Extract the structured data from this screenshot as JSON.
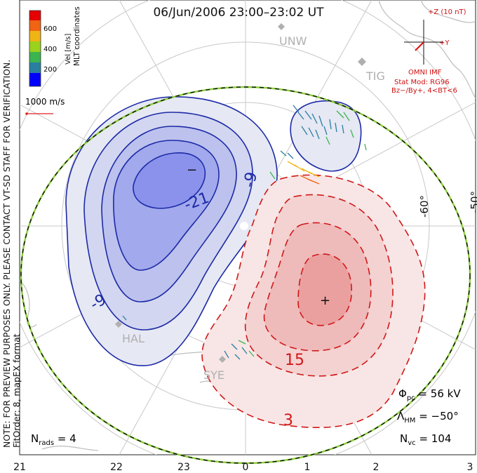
{
  "title": "06/Jun/2006 23:00–23:02 UT",
  "side_note": {
    "line1": "NOTE: FOR PREVIEW PURPOSES ONLY. PLEASE CONTACT VT-SD STAFF FOR VERIFICATION.",
    "line2": "FitOrder: 8, mapEX format"
  },
  "colorbar": {
    "label": "Vel [m/s]",
    "coord_label": "MLT coordinates",
    "ticks": [
      "600",
      "400",
      "200"
    ],
    "colors": [
      "#0000ff",
      "#2a7fa0",
      "#3cb450",
      "#9ad21e",
      "#f0b414",
      "#f06414",
      "#e60000"
    ]
  },
  "ref_vector": {
    "label": "1000 m/s",
    "color": "#e02020"
  },
  "imf": {
    "z_label": "+Z (10 nT)",
    "y_label": "+Y",
    "source": "OMNI IMF",
    "model_line1": "Stat Mod: RG96",
    "model_line2": "Bz−/By+, 4<BT<6",
    "color": "#e01010"
  },
  "stations": [
    "UNW",
    "TIG",
    "HAL",
    "SYE"
  ],
  "lat_labels": [
    "-60°",
    "-50°"
  ],
  "contour_labels": {
    "negative": [
      "-9",
      "-21",
      "-9"
    ],
    "positive": [
      "15",
      "3"
    ],
    "min_marker": "−",
    "max_marker": "+"
  },
  "stats": {
    "phi_pc": "Φ",
    "phi_sub": "pc",
    "phi_value": "= 56 kV",
    "lambda": "Λ",
    "lambda_sub": "HM",
    "lambda_value": "= −50°",
    "nvc": "N",
    "nvc_sub": "vc",
    "nvc_value": "= 104",
    "nrads": "N",
    "nrads_sub": "rads",
    "nrads_value": "= 4"
  },
  "mlt_ticks": [
    "21",
    "22",
    "23",
    "0",
    "1",
    "2",
    "3"
  ],
  "colors": {
    "neg_fill": [
      "#e6e8f4",
      "#d2d6f0",
      "#bcc1ee",
      "#a2a9ec",
      "#8a92ec"
    ],
    "neg_line": "#1c2aa6",
    "pos_fill": [
      "#f8e6e6",
      "#f4d2d2",
      "#efbaba",
      "#eba0a0"
    ],
    "pos_line": "#d01818",
    "hmb": "#8ccf3c",
    "grid": "#c8c8c8",
    "coast": "#bdbdbd"
  }
}
